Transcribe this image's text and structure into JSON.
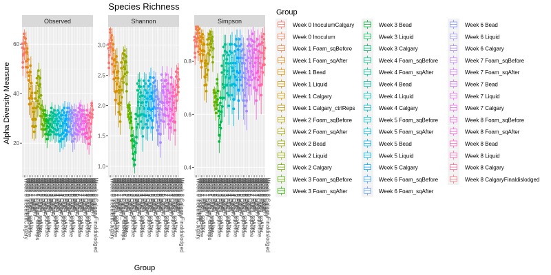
{
  "chart_data": {
    "type": "boxplot",
    "title": "Species Richness",
    "xlabel": "Group",
    "ylabel": "Alpha Diversity Measure",
    "legend_title": "Group",
    "legend_position": "right",
    "grid": true,
    "groups": [
      {
        "label": "Week 0 InoculumCalgary",
        "color": "#F8766D"
      },
      {
        "label": "Week 0 Inoculum",
        "color": "#F37B59"
      },
      {
        "label": "Week 1 Foam_sqBefore",
        "color": "#ED8141"
      },
      {
        "label": "Week 1 Foam_sqAfter",
        "color": "#E7861B"
      },
      {
        "label": "Week 1 Bead",
        "color": "#DF8C00"
      },
      {
        "label": "Week 1 Liquid",
        "color": "#D69100"
      },
      {
        "label": "Week 1 Calgary",
        "color": "#CC9600"
      },
      {
        "label": "Week 1 Calgary_ctrlReps",
        "color": "#C19A00"
      },
      {
        "label": "Week 2 Foam_sqBefore",
        "color": "#B59F00"
      },
      {
        "label": "Week 2 Foam_sqAfter",
        "color": "#A8A300"
      },
      {
        "label": "Week 2 Bead",
        "color": "#99A800"
      },
      {
        "label": "Week 2 Liquid",
        "color": "#88AB00"
      },
      {
        "label": "Week 2 Calgary",
        "color": "#75AF00"
      },
      {
        "label": "Week 3 Foam_sqBefore",
        "color": "#5BB300"
      },
      {
        "label": "Week 3 Foam_sqAfter",
        "color": "#30B700"
      },
      {
        "label": "Week 3 Bead",
        "color": "#00BA38"
      },
      {
        "label": "Week 3 Liquid",
        "color": "#00BC55"
      },
      {
        "label": "Week 3 Calgary",
        "color": "#00BE6C"
      },
      {
        "label": "Week 4 Foam_sqBefore",
        "color": "#00C080"
      },
      {
        "label": "Week 4 Foam_sqAfter",
        "color": "#00C192"
      },
      {
        "label": "Week 4 Bead",
        "color": "#00C1A3"
      },
      {
        "label": "Week 4 Liquid",
        "color": "#00C0B4"
      },
      {
        "label": "Week 4 Calgary",
        "color": "#00BFC4"
      },
      {
        "label": "Week 5 Foam_sqBefore",
        "color": "#00BDD3"
      },
      {
        "label": "Week 5 Foam_sqAfter",
        "color": "#00BAE0"
      },
      {
        "label": "Week 5 Bead",
        "color": "#00B5ED"
      },
      {
        "label": "Week 5 Liquid",
        "color": "#00B0F6"
      },
      {
        "label": "Week 5 Calgary",
        "color": "#00A9FF"
      },
      {
        "label": "Week 6 Foam_sqBefore",
        "color": "#35A2FF"
      },
      {
        "label": "Week 6 Foam_sqAfter",
        "color": "#619CFF"
      },
      {
        "label": "Week 6 Bead",
        "color": "#7F96FF"
      },
      {
        "label": "Week 6 Liquid",
        "color": "#988FFE"
      },
      {
        "label": "Week 6 Calgary",
        "color": "#AC88FF"
      },
      {
        "label": "Week 7 Foam_sqBefore",
        "color": "#BF80FF"
      },
      {
        "label": "Week 7 Foam_sqAfter",
        "color": "#CF78FF"
      },
      {
        "label": "Week 7 Bead",
        "color": "#DC71FA"
      },
      {
        "label": "Week 7 Liquid",
        "color": "#E76BF3"
      },
      {
        "label": "Week 7 Calgary",
        "color": "#F066EA"
      },
      {
        "label": "Week 8 Foam_sqBefore",
        "color": "#F763E0"
      },
      {
        "label": "Week 8 Foam_sqAfter",
        "color": "#FC61D5"
      },
      {
        "label": "Week 8 Bead",
        "color": "#FF62BC"
      },
      {
        "label": "Week 8 Liquid",
        "color": "#FF65AE"
      },
      {
        "label": "Week 8 Calgary",
        "color": "#FF6A9A"
      },
      {
        "label": "Week 8 CalgaryFinaldislodged",
        "color": "#FB727C"
      }
    ],
    "panels": [
      {
        "name": "Observed",
        "ylim": [
          7,
          67
        ],
        "yticks": [
          20,
          40,
          60
        ],
        "medians": [
          55,
          60,
          56,
          53,
          41,
          43,
          33,
          29,
          33,
          40,
          42,
          38,
          30,
          29,
          28,
          26,
          26,
          27,
          29,
          28,
          28,
          27,
          28,
          26,
          26,
          27,
          28,
          27,
          29,
          29,
          28,
          26,
          27,
          28,
          27,
          29,
          30,
          28,
          28,
          26,
          27,
          25,
          27,
          33
        ],
        "spreads": [
          5,
          4,
          6,
          5,
          6,
          8,
          7,
          5,
          7,
          6,
          7,
          8,
          5,
          4,
          5,
          5,
          3,
          4,
          5,
          4,
          5,
          4,
          5,
          6,
          5,
          6,
          6,
          4,
          5,
          5,
          5,
          6,
          6,
          5,
          4,
          5,
          5,
          5,
          5,
          4,
          6,
          6,
          5,
          3
        ]
      },
      {
        "name": "Shannon",
        "ylim": [
          0.85,
          3.3
        ],
        "yticks": [
          1.0,
          1.5,
          2.0,
          2.5,
          3.0
        ],
        "medians": [
          2.8,
          3.1,
          2.9,
          2.7,
          2.4,
          2.5,
          2.2,
          2.0,
          2.4,
          2.6,
          2.7,
          2.5,
          1.9,
          1.85,
          1.6,
          1.3,
          1.2,
          1.6,
          2.0,
          2.1,
          2.0,
          1.8,
          2.1,
          2.0,
          1.9,
          2.1,
          2.1,
          1.9,
          2.2,
          2.1,
          1.9,
          1.8,
          1.7,
          2.2,
          2.0,
          2.1,
          2.2,
          2.0,
          1.9,
          2.1,
          2.0,
          1.9,
          2.3,
          2.4
        ],
        "spreads": [
          0.2,
          0.15,
          0.25,
          0.3,
          0.35,
          0.3,
          0.35,
          0.3,
          0.3,
          0.25,
          0.2,
          0.3,
          0.1,
          0.15,
          0.2,
          0.2,
          0.2,
          0.25,
          0.35,
          0.3,
          0.3,
          0.35,
          0.3,
          0.35,
          0.3,
          0.3,
          0.35,
          0.3,
          0.25,
          0.3,
          0.35,
          0.3,
          0.35,
          0.3,
          0.3,
          0.3,
          0.3,
          0.35,
          0.3,
          0.35,
          0.3,
          0.35,
          0.25,
          0.2
        ]
      },
      {
        "name": "Simpson",
        "ylim": [
          0.37,
          0.93
        ],
        "yticks": [
          0.4,
          0.6,
          0.8
        ],
        "medians": [
          0.85,
          0.9,
          0.88,
          0.87,
          0.83,
          0.86,
          0.78,
          0.74,
          0.82,
          0.86,
          0.88,
          0.84,
          0.66,
          0.64,
          0.68,
          0.55,
          0.6,
          0.7,
          0.75,
          0.78,
          0.75,
          0.72,
          0.78,
          0.76,
          0.7,
          0.78,
          0.8,
          0.74,
          0.8,
          0.78,
          0.74,
          0.72,
          0.7,
          0.8,
          0.78,
          0.8,
          0.82,
          0.78,
          0.74,
          0.8,
          0.78,
          0.76,
          0.82,
          0.84
        ],
        "spreads": [
          0.04,
          0.03,
          0.05,
          0.05,
          0.06,
          0.04,
          0.08,
          0.06,
          0.06,
          0.04,
          0.03,
          0.05,
          0.03,
          0.04,
          0.05,
          0.06,
          0.06,
          0.08,
          0.1,
          0.08,
          0.08,
          0.1,
          0.08,
          0.1,
          0.09,
          0.08,
          0.08,
          0.1,
          0.08,
          0.08,
          0.1,
          0.1,
          0.1,
          0.08,
          0.08,
          0.08,
          0.08,
          0.09,
          0.1,
          0.08,
          0.08,
          0.1,
          0.07,
          0.06
        ]
      }
    ]
  }
}
